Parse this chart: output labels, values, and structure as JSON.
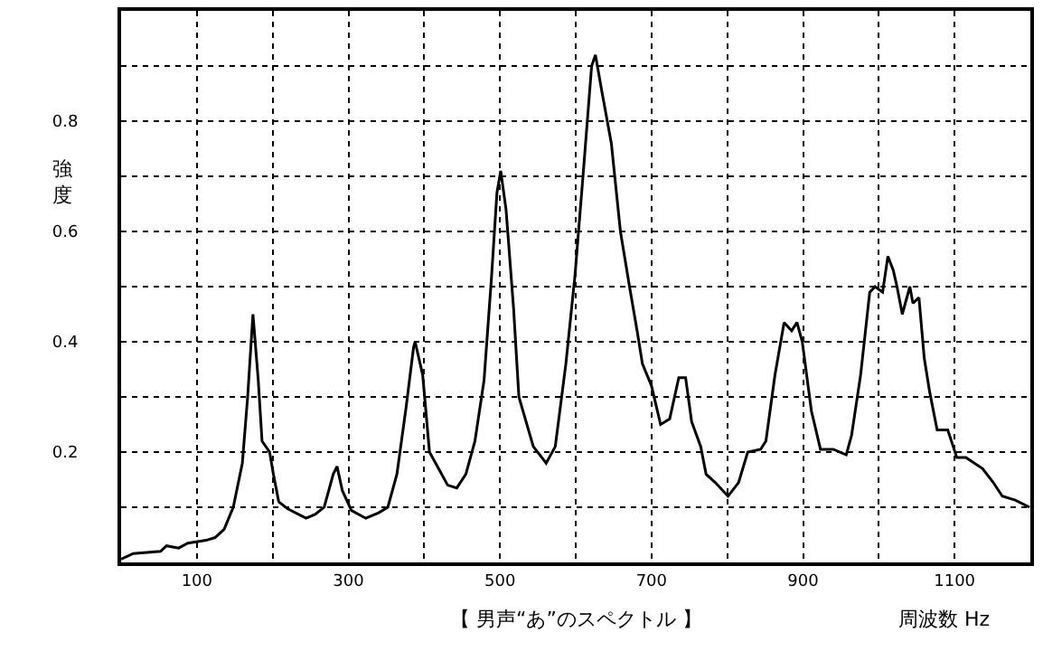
{
  "chart_data": {
    "type": "line",
    "xlabel": "【 男声“あ”のスペクトル 】",
    "ylabel": "強度",
    "annotations": [
      "周波数 Hz"
    ],
    "x": [
      0,
      16,
      52,
      60,
      76,
      88,
      112,
      124,
      136,
      148,
      160,
      167,
      174,
      181,
      186,
      196,
      201,
      208,
      220,
      244,
      256,
      268,
      280,
      285,
      292,
      304,
      323,
      340,
      352,
      364,
      376,
      386,
      388,
      398,
      407,
      419,
      431,
      443,
      455,
      467,
      479,
      489,
      496,
      501,
      508,
      518,
      525,
      544,
      561,
      573,
      587,
      599,
      609,
      621,
      626,
      635,
      647,
      659,
      671,
      681,
      688,
      700,
      712,
      724,
      736,
      745,
      753,
      765,
      772,
      784,
      801,
      815,
      827,
      844,
      851,
      863,
      875,
      885,
      892,
      899,
      911,
      923,
      940,
      957,
      964,
      976,
      988,
      995,
      1005,
      1012,
      1019,
      1024,
      1031,
      1041,
      1045,
      1053,
      1060,
      1067,
      1077,
      1091,
      1103,
      1115,
      1137,
      1151,
      1163,
      1180,
      1199
    ],
    "series": [
      {
        "color": "#000000",
        "values": [
          0.006,
          0.016,
          0.02,
          0.03,
          0.026,
          0.035,
          0.04,
          0.045,
          0.06,
          0.1,
          0.18,
          0.3,
          0.45,
          0.33,
          0.22,
          0.2,
          0.16,
          0.11,
          0.097,
          0.08,
          0.087,
          0.1,
          0.16,
          0.174,
          0.13,
          0.094,
          0.08,
          0.09,
          0.1,
          0.16,
          0.28,
          0.39,
          0.4,
          0.34,
          0.2,
          0.17,
          0.14,
          0.135,
          0.16,
          0.22,
          0.33,
          0.52,
          0.67,
          0.71,
          0.64,
          0.46,
          0.3,
          0.21,
          0.18,
          0.21,
          0.36,
          0.52,
          0.69,
          0.9,
          0.92,
          0.85,
          0.76,
          0.6,
          0.5,
          0.42,
          0.36,
          0.32,
          0.25,
          0.26,
          0.335,
          0.335,
          0.255,
          0.21,
          0.16,
          0.145,
          0.12,
          0.145,
          0.2,
          0.205,
          0.22,
          0.34,
          0.435,
          0.42,
          0.435,
          0.4,
          0.275,
          0.205,
          0.205,
          0.195,
          0.23,
          0.34,
          0.49,
          0.5,
          0.49,
          0.555,
          0.53,
          0.5,
          0.45,
          0.5,
          0.47,
          0.48,
          0.37,
          0.31,
          0.24,
          0.24,
          0.19,
          0.19,
          0.17,
          0.145,
          0.12,
          0.113,
          0.1
        ]
      }
    ],
    "xlim": [
      0,
      1200
    ],
    "xticks": [
      {
        "value": 100,
        "label": "100"
      },
      {
        "value": 200,
        "label": null
      },
      {
        "value": 300,
        "label": "300"
      },
      {
        "value": 400,
        "label": null
      },
      {
        "value": 500,
        "label": "500"
      },
      {
        "value": 600,
        "label": null
      },
      {
        "value": 700,
        "label": "700"
      },
      {
        "value": 800,
        "label": null
      },
      {
        "value": 900,
        "label": "900"
      },
      {
        "value": 1000,
        "label": null
      },
      {
        "value": 1100,
        "label": "1100"
      }
    ],
    "ylim": [
      0,
      1.0
    ],
    "yticks": [
      {
        "value": 0.1,
        "label": null
      },
      0.2,
      {
        "value": 0.3,
        "label": null
      },
      0.4,
      {
        "value": 0.5,
        "label": null
      },
      0.6,
      {
        "value": 0.7,
        "label": null
      },
      0.8,
      {
        "value": 0.9,
        "label": null
      }
    ],
    "grid": true,
    "marker": "none",
    "line_style": "solid"
  }
}
